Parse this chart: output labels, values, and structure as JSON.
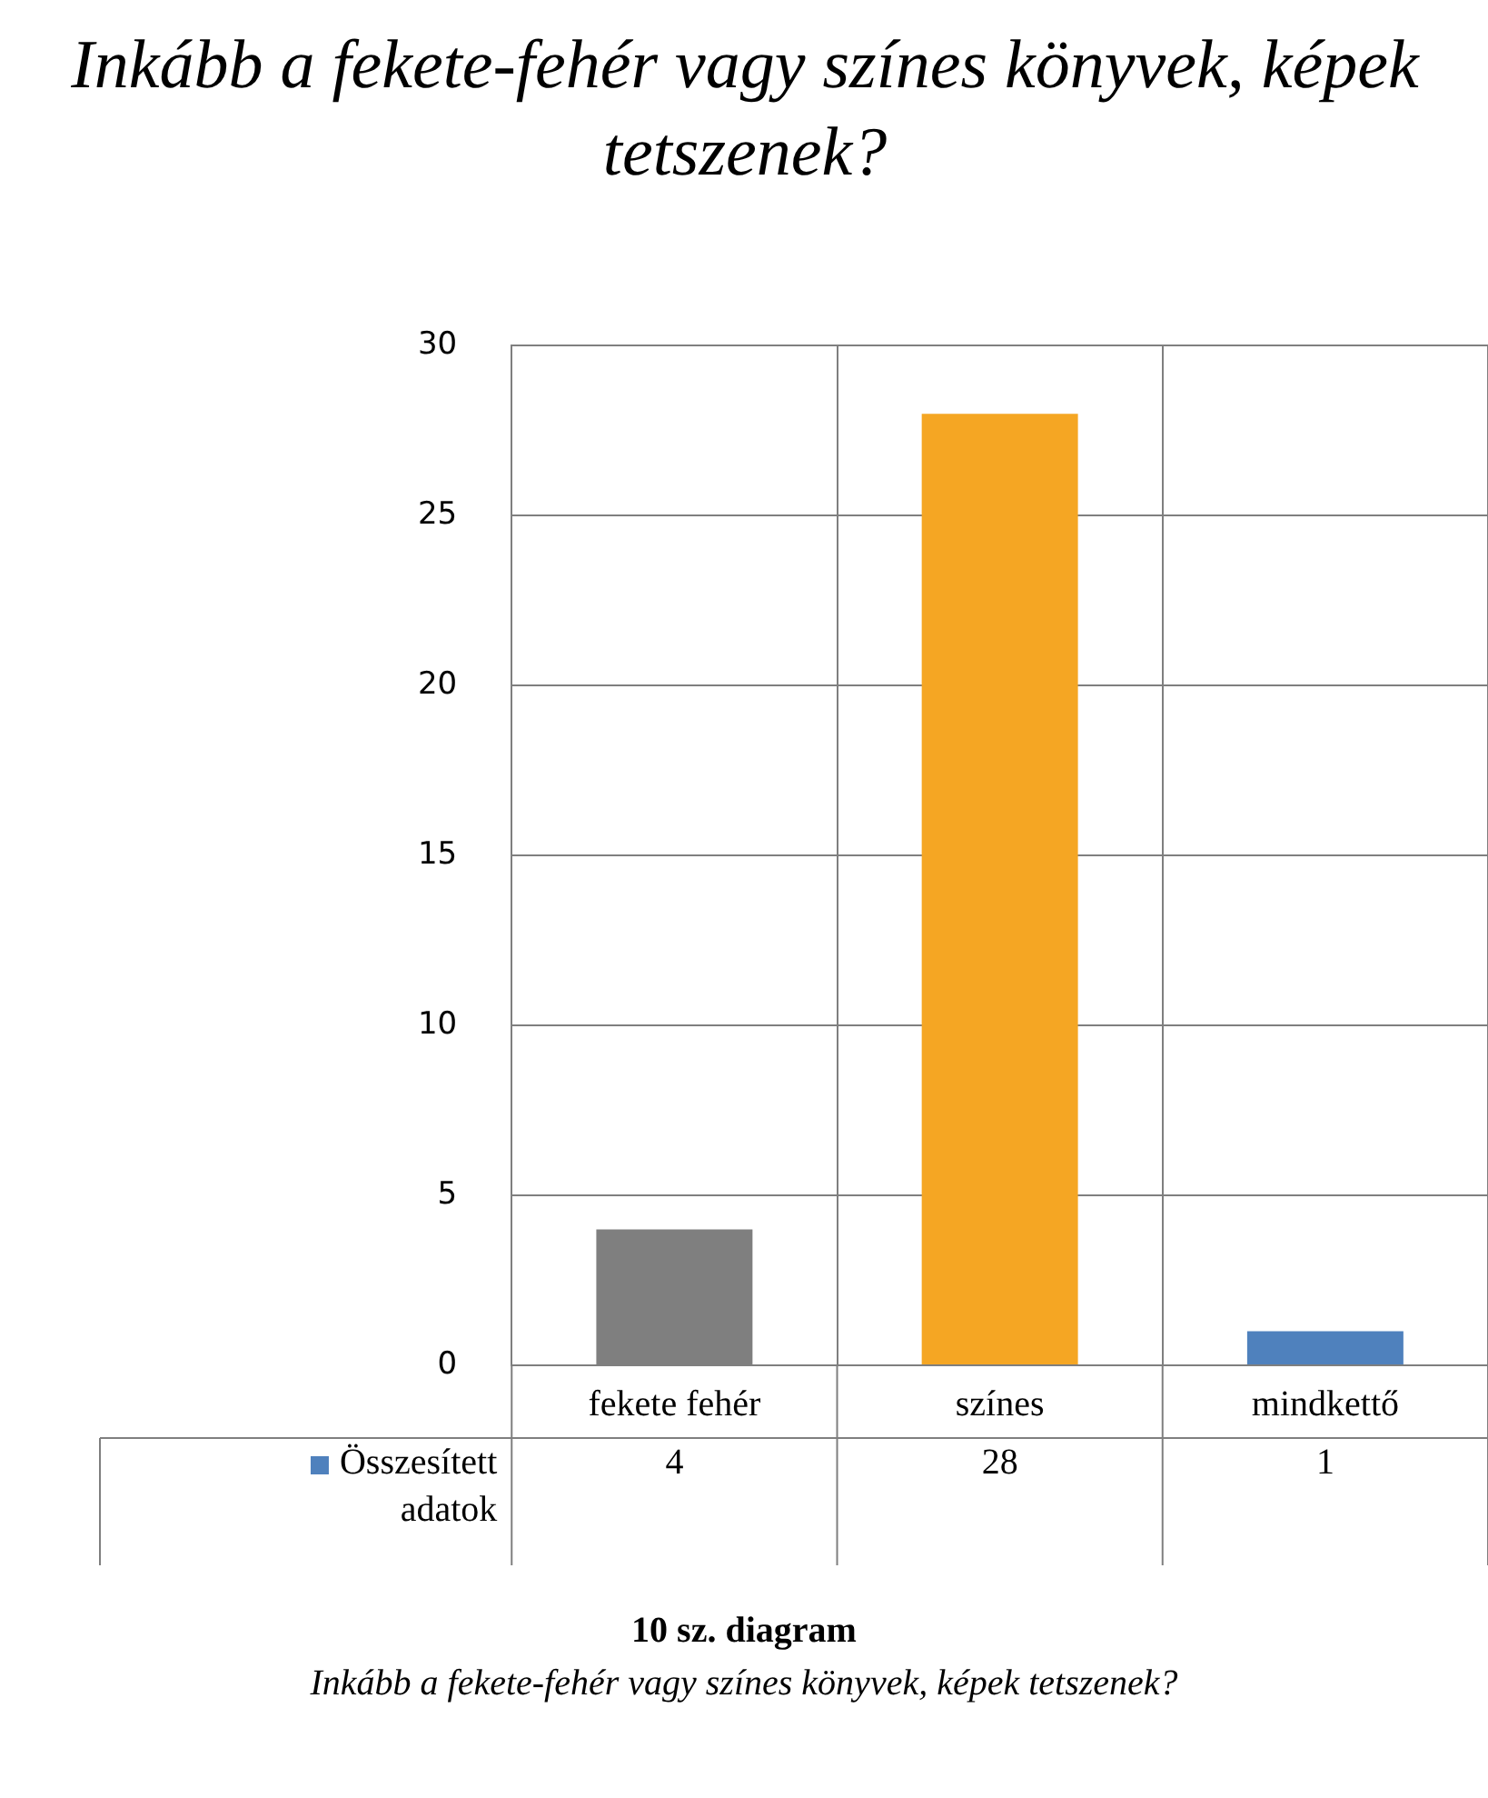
{
  "chart_data": {
    "type": "bar",
    "title": "Inkább a fekete-fehér vagy színes könyvek, képek tetszenek?",
    "categories": [
      "fekete fehér",
      "színes",
      "mindkettő"
    ],
    "series": [
      {
        "name": "Összesített adatok",
        "color": "#4f81bd",
        "colors": [
          "#7f7f7f",
          "#f5a623",
          "#4f81bd"
        ],
        "values": [
          4,
          28,
          1
        ]
      }
    ],
    "ylim": [
      0,
      30
    ],
    "yticks": [
      0,
      5,
      10,
      15,
      20,
      25,
      30
    ],
    "grid": "y",
    "legend": "bottom",
    "data_labels": true,
    "annotations": [
      "10 sz. diagram",
      "Inkább a fekete-fehér vagy színes könyvek, képek tetszenek?"
    ]
  }
}
